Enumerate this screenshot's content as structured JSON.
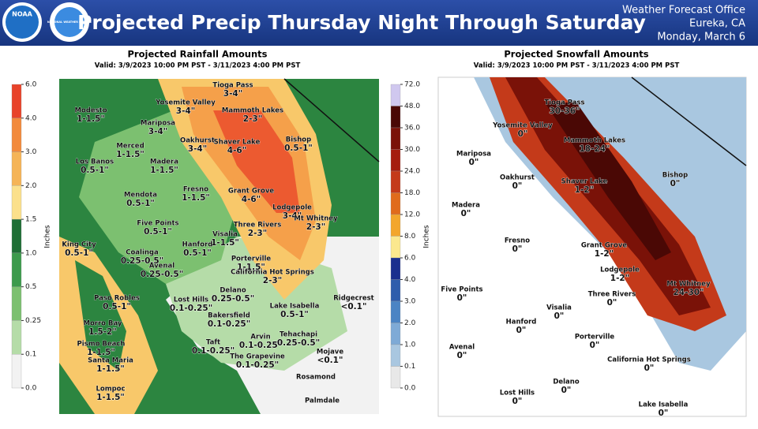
{
  "header": {
    "title": "Projected Precip Thursday Night Through Saturday",
    "office": [
      "Weather Forecast Office",
      "Eureka, CA",
      "Monday, March 6"
    ],
    "logos": [
      "NOAA",
      "NATIONAL WEATHER SERVICE"
    ]
  },
  "rain": {
    "title": "Projected Rainfall Amounts",
    "valid": "Valid: 3/9/2023 10:00 PM PST - 3/11/2023 4:00 PM PST",
    "units": "Inches",
    "legend": [
      "6.0",
      "4.0",
      "3.0",
      "2.0",
      "1.5",
      "1.0",
      "0.5",
      "0.25",
      "0.1",
      "0.0"
    ],
    "places": [
      {
        "name": "Tioga Pass",
        "amount": "3-4\""
      },
      {
        "name": "Yosemite Valley",
        "amount": "3-4\""
      },
      {
        "name": "Mammoth Lakes",
        "amount": "2-3\""
      },
      {
        "name": "Mariposa",
        "amount": "3-4\""
      },
      {
        "name": "Modesto",
        "amount": "1-1.5\""
      },
      {
        "name": "Merced",
        "amount": "1-1.5\""
      },
      {
        "name": "Oakhurst",
        "amount": "3-4\""
      },
      {
        "name": "Shaver Lake",
        "amount": "4-6\""
      },
      {
        "name": "Bishop",
        "amount": "0.5-1\""
      },
      {
        "name": "Los Banos",
        "amount": "0.5-1\""
      },
      {
        "name": "Madera",
        "amount": "1-1.5\""
      },
      {
        "name": "Fresno",
        "amount": "1-1.5\""
      },
      {
        "name": "Grant Grove",
        "amount": "4-6\""
      },
      {
        "name": "Mendota",
        "amount": "0.5-1\""
      },
      {
        "name": "Lodgepole",
        "amount": "3-4\""
      },
      {
        "name": "Mt Whitney",
        "amount": "2-3\""
      },
      {
        "name": "Five Points",
        "amount": "0.5-1\""
      },
      {
        "name": "Three Rivers",
        "amount": "2-3\""
      },
      {
        "name": "King City",
        "amount": "0.5-1\""
      },
      {
        "name": "Visalia",
        "amount": "1-1.5\""
      },
      {
        "name": "Hanford",
        "amount": "0.5-1\""
      },
      {
        "name": "Coalinga",
        "amount": "0.25-0.5\""
      },
      {
        "name": "Avenal",
        "amount": "0.25-0.5\""
      },
      {
        "name": "Porterville",
        "amount": "1-1.5\""
      },
      {
        "name": "California Hot Springs",
        "amount": "2-3\""
      },
      {
        "name": "Delano",
        "amount": "0.25-0.5\""
      },
      {
        "name": "Paso Robles",
        "amount": "0.5-1\""
      },
      {
        "name": "Lost Hills",
        "amount": "0.1-0.25\""
      },
      {
        "name": "Lake Isabella",
        "amount": "0.5-1\""
      },
      {
        "name": "Ridgecrest",
        "amount": "<0.1\""
      },
      {
        "name": "Bakersfield",
        "amount": "0.1-0.25\""
      },
      {
        "name": "Morro Bay",
        "amount": "1.5-2\""
      },
      {
        "name": "Taft",
        "amount": "0.1-0.25\""
      },
      {
        "name": "Arvin",
        "amount": "0.1-0.25\""
      },
      {
        "name": "Tehachapi",
        "amount": "0.25-0.5\""
      },
      {
        "name": "Pismo Beach",
        "amount": "1-1.5\""
      },
      {
        "name": "The Grapevine",
        "amount": "0.1-0.25\""
      },
      {
        "name": "Mojave",
        "amount": "<0.1\""
      },
      {
        "name": "Santa Maria",
        "amount": "1-1.5\""
      },
      {
        "name": "Rosamond"
      },
      {
        "name": "Palmdale"
      },
      {
        "name": "Lompoc",
        "amount": "1-1.5\""
      }
    ]
  },
  "snow": {
    "title": "Projected Snowfall Amounts",
    "valid": "Valid: 3/9/2023 10:00 PM PST - 3/11/2023 4:00 PM PST",
    "units": "Inches",
    "legend": [
      "72.0",
      "48.0",
      "36.0",
      "30.0",
      "24.0",
      "18.0",
      "12.0",
      "8.0",
      "6.0",
      "4.0",
      "3.0",
      "2.0",
      "1.0",
      "0.1",
      "0.0"
    ],
    "places": [
      {
        "name": "Tioga Pass",
        "amount": "30-36\""
      },
      {
        "name": "Yosemite Valley",
        "amount": "0\""
      },
      {
        "name": "Mammoth Lakes",
        "amount": "18-24\""
      },
      {
        "name": "Mariposa",
        "amount": "0\""
      },
      {
        "name": "Bishop",
        "amount": "0\""
      },
      {
        "name": "Oakhurst",
        "amount": "0\""
      },
      {
        "name": "Shaver Lake",
        "amount": "1-2\""
      },
      {
        "name": "Madera",
        "amount": "0\""
      },
      {
        "name": "Fresno",
        "amount": "0\""
      },
      {
        "name": "Grant Grove",
        "amount": "1-2\""
      },
      {
        "name": "Lodgepole",
        "amount": "1-2\""
      },
      {
        "name": "Mt Whitney",
        "amount": "24-30\""
      },
      {
        "name": "Five Points",
        "amount": "0\""
      },
      {
        "name": "Three Rivers",
        "amount": "0\""
      },
      {
        "name": "Visalia",
        "amount": "0\""
      },
      {
        "name": "Hanford",
        "amount": "0\""
      },
      {
        "name": "Porterville",
        "amount": "0\""
      },
      {
        "name": "Avenal",
        "amount": "0\""
      },
      {
        "name": "California Hot Springs",
        "amount": "0\""
      },
      {
        "name": "Delano",
        "amount": "0\""
      },
      {
        "name": "Lost Hills",
        "amount": "0\""
      },
      {
        "name": "Lake Isabella",
        "amount": "0\""
      }
    ]
  }
}
